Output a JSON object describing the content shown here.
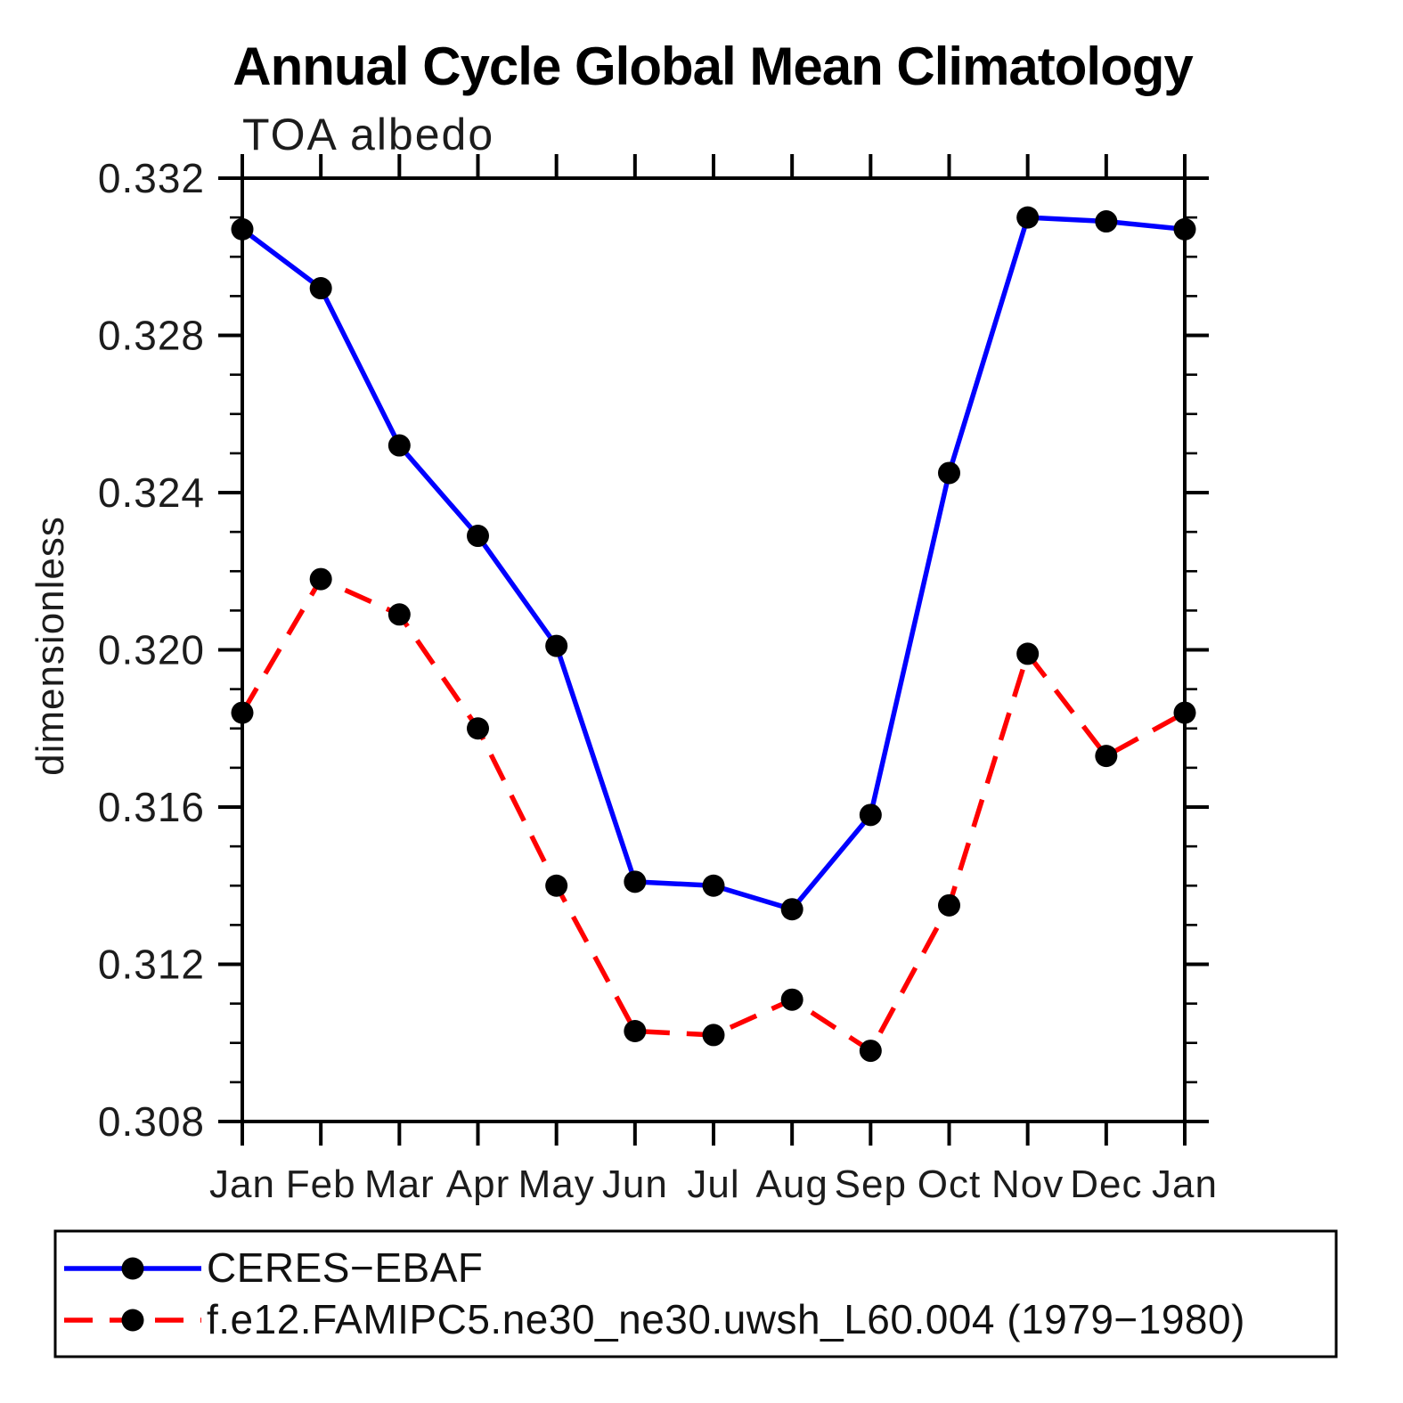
{
  "chart_data": {
    "type": "line",
    "title": "Annual Cycle Global Mean Climatology",
    "subtitle": "TOA albedo",
    "ylabel": "dimensionless",
    "xlabel": "",
    "categories": [
      "Jan",
      "Feb",
      "Mar",
      "Apr",
      "May",
      "Jun",
      "Jul",
      "Aug",
      "Sep",
      "Oct",
      "Nov",
      "Dec",
      "Jan"
    ],
    "ylim": [
      0.308,
      0.332
    ],
    "ytick_major_interval": 0.004,
    "ytick_minor_interval": 0.001,
    "ytick_labels": [
      "0.308",
      "0.312",
      "0.316",
      "0.320",
      "0.324",
      "0.328",
      "0.332"
    ],
    "grid": false,
    "legend_position": "bottom-left box",
    "series": [
      {
        "name": "CERES−EBAF",
        "color": "#0000ff",
        "line_style": "solid",
        "marker": "filled-circle",
        "marker_color": "#000000",
        "values": [
          0.3307,
          0.3292,
          0.3252,
          0.3229,
          0.3201,
          0.3141,
          0.314,
          0.3134,
          0.3158,
          0.3245,
          0.331,
          0.3309,
          0.3307
        ]
      },
      {
        "name": "f.e12.FAMIPC5.ne30_ne30.uwsh_L60.004 (1979−1980)",
        "color": "#ff0000",
        "line_style": "dashed",
        "marker": "filled-circle",
        "marker_color": "#000000",
        "values": [
          0.3184,
          0.3218,
          0.3209,
          0.318,
          0.314,
          0.3103,
          0.3102,
          0.3111,
          0.3098,
          0.3135,
          0.3199,
          0.3173,
          0.3184
        ]
      }
    ]
  }
}
